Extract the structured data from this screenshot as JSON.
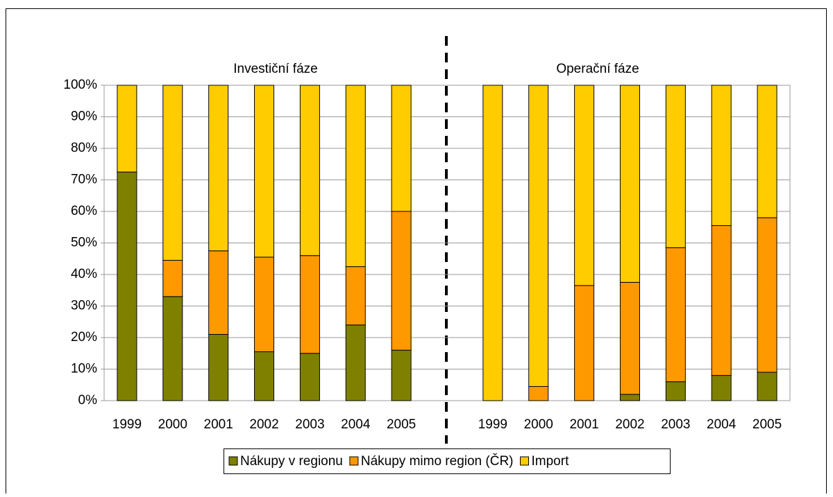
{
  "chart_data": {
    "type": "bar",
    "stacked": true,
    "annotations": [
      "Investiční fáze",
      "Operační fáze"
    ],
    "categories": [
      "1999",
      "2000",
      "2001",
      "2002",
      "2003",
      "2004",
      "2005",
      null,
      "1999",
      "2000",
      "2001",
      "2002",
      "2003",
      "2004",
      "2005"
    ],
    "series": [
      {
        "name": "Nákupy v regionu",
        "color": "#808000",
        "values": [
          72.5,
          33,
          21,
          15.5,
          15,
          24,
          16,
          null,
          0,
          0,
          0,
          2,
          6,
          8,
          9
        ]
      },
      {
        "name": "Nákupy mimo region (ČR)",
        "color": "#ff9900",
        "values": [
          0,
          11.5,
          26.5,
          30,
          31,
          18.5,
          44,
          null,
          0,
          4.5,
          36.5,
          35.5,
          42.5,
          47.5,
          49
        ]
      },
      {
        "name": "Import",
        "color": "#ffcc00",
        "values": [
          27.5,
          55.5,
          52.5,
          54.5,
          54,
          57.5,
          40,
          null,
          100,
          95.5,
          63.5,
          62.5,
          51.5,
          44.5,
          42
        ]
      }
    ],
    "ylim": [
      0,
      100
    ],
    "yticks": [
      {
        "value": 0,
        "label": "0%"
      },
      {
        "value": 10,
        "label": "10%"
      },
      {
        "value": 20,
        "label": "20%"
      },
      {
        "value": 30,
        "label": "30%"
      },
      {
        "value": 40,
        "label": "40%"
      },
      {
        "value": 50,
        "label": "50%"
      },
      {
        "value": 60,
        "label": "60%"
      },
      {
        "value": 70,
        "label": "70%"
      },
      {
        "value": 80,
        "label": "80%"
      },
      {
        "value": 90,
        "label": "90%"
      },
      {
        "value": 100,
        "label": "100%"
      }
    ],
    "grid": true,
    "legend": "bottom"
  }
}
